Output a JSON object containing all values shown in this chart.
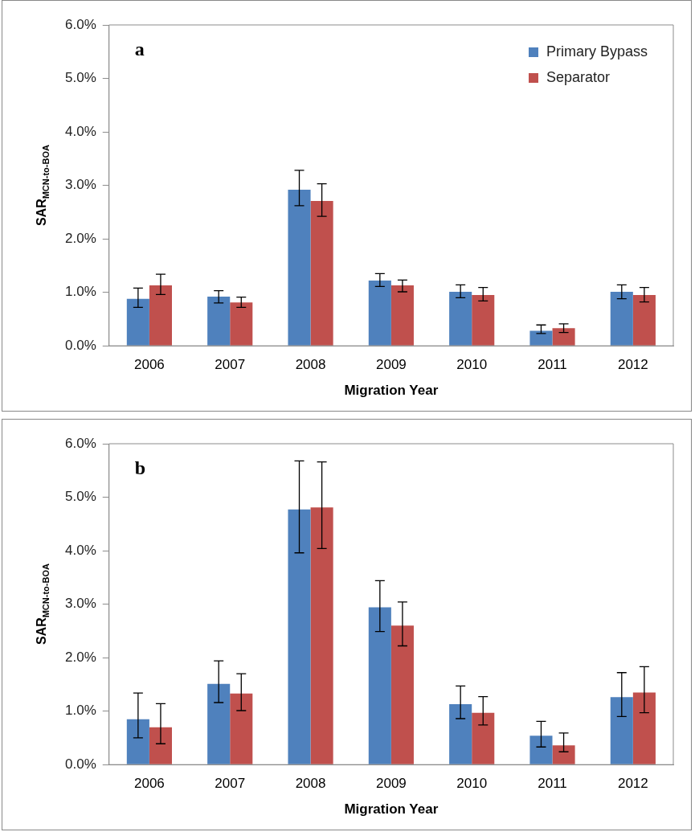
{
  "chart_data": [
    {
      "type": "bar",
      "title": "a",
      "xlabel": "Migration Year",
      "ylabel": "SAR$_{MCN-to-BOA}$",
      "categories": [
        "2006",
        "2007",
        "2008",
        "2009",
        "2010",
        "2011",
        "2012"
      ],
      "series": [
        {
          "name": "Primary Bypass",
          "color": "#4f81bd",
          "values": [
            0.88,
            0.92,
            2.92,
            1.22,
            1.01,
            0.28,
            1.01
          ],
          "errors": [
            [
              0.72,
              1.08
            ],
            [
              0.8,
              1.03
            ],
            [
              2.62,
              3.28
            ],
            [
              1.11,
              1.35
            ],
            [
              0.9,
              1.14
            ],
            [
              0.23,
              0.39
            ],
            [
              0.88,
              1.14
            ]
          ]
        },
        {
          "name": "Separator",
          "color": "#c0504d",
          "values": [
            1.13,
            0.81,
            2.71,
            1.13,
            0.95,
            0.33,
            0.95
          ],
          "errors": [
            [
              0.96,
              1.34
            ],
            [
              0.72,
              0.91
            ],
            [
              2.42,
              3.03
            ],
            [
              1.01,
              1.23
            ],
            [
              0.84,
              1.09
            ],
            [
              0.25,
              0.41
            ],
            [
              0.82,
              1.09
            ]
          ]
        }
      ],
      "ylim": [
        0,
        6
      ],
      "yticks": [
        {
          "value": 0,
          "label": "0.0%"
        },
        {
          "value": 1,
          "label": "1.0%"
        },
        {
          "value": 2,
          "label": "2.0%"
        },
        {
          "value": 3,
          "label": "3.0%"
        },
        {
          "value": 4,
          "label": "4.0%"
        },
        {
          "value": 5,
          "label": "5.0%"
        },
        {
          "value": 6,
          "label": "6.0%"
        }
      ],
      "grid": false,
      "legend": "top right"
    },
    {
      "type": "bar",
      "title": "b",
      "xlabel": "Migration Year",
      "ylabel": "SAR$_{MCN-to-BOA}$",
      "categories": [
        "2006",
        "2007",
        "2008",
        "2009",
        "2010",
        "2011",
        "2012"
      ],
      "series": [
        {
          "color": "#4f81bd",
          "values": [
            0.85,
            1.51,
            4.77,
            2.94,
            1.13,
            0.54,
            1.26
          ],
          "errors": [
            [
              0.5,
              1.34
            ],
            [
              1.16,
              1.94
            ],
            [
              3.96,
              5.68
            ],
            [
              2.49,
              3.44
            ],
            [
              0.86,
              1.47
            ],
            [
              0.33,
              0.81
            ],
            [
              0.9,
              1.72
            ]
          ]
        },
        {
          "color": "#c0504d",
          "values": [
            0.7,
            1.33,
            4.81,
            2.6,
            0.97,
            0.36,
            1.35
          ],
          "errors": [
            [
              0.39,
              1.14
            ],
            [
              1.01,
              1.7
            ],
            [
              4.04,
              5.66
            ],
            [
              2.22,
              3.04
            ],
            [
              0.74,
              1.27
            ],
            [
              0.24,
              0.59
            ],
            [
              0.97,
              1.83
            ]
          ]
        }
      ],
      "ylim": [
        0,
        6
      ],
      "yticks": [
        {
          "value": 0,
          "label": "0.0%"
        },
        {
          "value": 1,
          "label": "1.0%"
        },
        {
          "value": 2,
          "label": "2.0%"
        },
        {
          "value": 3,
          "label": "3.0%"
        },
        {
          "value": 4,
          "label": "4.0%"
        },
        {
          "value": 5,
          "label": "5.0%"
        },
        {
          "value": 6,
          "label": "6.0%"
        }
      ],
      "grid": false,
      "legend": false
    }
  ]
}
